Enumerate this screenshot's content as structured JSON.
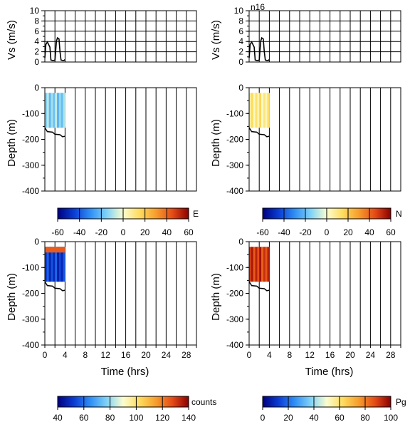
{
  "figure_label": "n16",
  "chart_data": [
    {
      "id": "vs-east",
      "type": "line",
      "ylabel": "Vs (m/s)",
      "yticks": [
        0,
        2,
        4,
        6,
        8,
        10
      ],
      "ylim": [
        0,
        10
      ],
      "xlim": [
        0,
        30
      ],
      "grid": true,
      "series": [
        {
          "x": [
            0,
            0.2,
            0.5,
            0.8,
            1.0,
            1.2,
            1.5,
            1.8,
            2.0,
            2.3,
            2.5,
            2.8,
            3.0,
            3.2,
            3.5,
            3.8,
            4.0
          ],
          "y": [
            0.8,
            3.4,
            3.9,
            3.3,
            2.9,
            0.4,
            0.3,
            0.3,
            0.4,
            4.1,
            4.7,
            4.5,
            2.0,
            0.4,
            0.3,
            0.3,
            0.5
          ]
        }
      ]
    },
    {
      "id": "vs-north",
      "type": "line",
      "ylabel": "Vs (m/s)",
      "yticks": [
        0,
        2,
        4,
        6,
        8,
        10
      ],
      "ylim": [
        0,
        10
      ],
      "xlim": [
        0,
        30
      ],
      "grid": true,
      "series": [
        {
          "x": [
            0,
            0.2,
            0.5,
            0.8,
            1.0,
            1.2,
            1.5,
            1.8,
            2.0,
            2.3,
            2.5,
            2.8,
            3.0,
            3.2,
            3.5,
            3.8,
            4.0
          ],
          "y": [
            0.8,
            3.4,
            3.9,
            3.3,
            2.9,
            0.4,
            0.3,
            0.3,
            0.4,
            4.1,
            4.7,
            4.5,
            2.0,
            0.4,
            0.3,
            0.3,
            0.5
          ]
        }
      ]
    },
    {
      "id": "depth-east",
      "type": "heatmap",
      "ylabel": "Depth (m)",
      "yticks": [
        0,
        -100,
        -200,
        -300,
        -400
      ],
      "ylim": [
        -400,
        0
      ],
      "xlim": [
        0,
        30
      ],
      "data_x_range": [
        0,
        4
      ],
      "data_depth_range": [
        -20,
        -155
      ],
      "colorbar": {
        "label": "E",
        "ticks": [
          -60,
          -40,
          -20,
          0,
          20,
          40,
          60
        ],
        "range": [
          -60,
          60
        ],
        "palette": "blue-to-red"
      },
      "typical_value": -15,
      "bottom_line": {
        "x": [
          0,
          0.5,
          1.5,
          2.0,
          3.0,
          3.5,
          4.0
        ],
        "y": [
          -155,
          -170,
          -172,
          -180,
          -182,
          -190,
          -188
        ]
      }
    },
    {
      "id": "depth-north",
      "type": "heatmap",
      "ylabel": "Depth (m)",
      "yticks": [
        0,
        -100,
        -200,
        -300,
        -400
      ],
      "ylim": [
        -400,
        0
      ],
      "xlim": [
        0,
        30
      ],
      "data_x_range": [
        0,
        4
      ],
      "data_depth_range": [
        -20,
        -155
      ],
      "colorbar": {
        "label": "N",
        "ticks": [
          -60,
          -40,
          -20,
          0,
          20,
          40,
          60
        ],
        "range": [
          -60,
          60
        ],
        "palette": "blue-to-red"
      },
      "typical_value": 8,
      "bottom_line": {
        "x": [
          0,
          0.5,
          1.5,
          2.0,
          3.0,
          3.5,
          4.0
        ],
        "y": [
          -155,
          -170,
          -172,
          -180,
          -182,
          -190,
          -188
        ]
      }
    },
    {
      "id": "depth-counts",
      "type": "heatmap",
      "ylabel": "Depth (m)",
      "xlabel": "Time (hrs)",
      "xticks": [
        0,
        4,
        8,
        12,
        16,
        20,
        24,
        28
      ],
      "yticks": [
        0,
        -100,
        -200,
        -300,
        -400
      ],
      "ylim": [
        -400,
        0
      ],
      "xlim": [
        0,
        30
      ],
      "data_x_range": [
        0,
        4
      ],
      "data_depth_range": [
        -20,
        -155
      ],
      "colorbar": {
        "label": "counts",
        "ticks": [
          40,
          60,
          80,
          100,
          120,
          140
        ],
        "range": [
          40,
          140
        ],
        "palette": "blue-to-red"
      },
      "typical_value": 52,
      "top_band_value": 125,
      "bottom_line": {
        "x": [
          0,
          0.5,
          1.5,
          2.0,
          3.0,
          3.5,
          4.0
        ],
        "y": [
          -155,
          -170,
          -172,
          -180,
          -182,
          -190,
          -188
        ]
      }
    },
    {
      "id": "depth-pg",
      "type": "heatmap",
      "ylabel": "Depth (m)",
      "xlabel": "Time (hrs)",
      "xticks": [
        0,
        4,
        8,
        12,
        16,
        20,
        24,
        28
      ],
      "yticks": [
        0,
        -100,
        -200,
        -300,
        -400
      ],
      "ylim": [
        -400,
        0
      ],
      "xlim": [
        0,
        30
      ],
      "data_x_range": [
        0,
        4
      ],
      "data_depth_range": [
        -20,
        -155
      ],
      "colorbar": {
        "label": "Pg",
        "ticks": [
          0,
          20,
          40,
          60,
          80,
          100
        ],
        "range": [
          0,
          100
        ],
        "palette": "blue-to-red"
      },
      "typical_value": 90,
      "bottom_line": {
        "x": [
          0,
          0.5,
          1.5,
          2.0,
          3.0,
          3.5,
          4.0
        ],
        "y": [
          -155,
          -170,
          -172,
          -180,
          -182,
          -190,
          -188
        ]
      }
    }
  ],
  "palette_stops": [
    "#00007f",
    "#0a3cd4",
    "#2f8ff5",
    "#7fd2f7",
    "#fbfdd0",
    "#fedc5e",
    "#f79d2c",
    "#e64b17",
    "#8b0000"
  ]
}
